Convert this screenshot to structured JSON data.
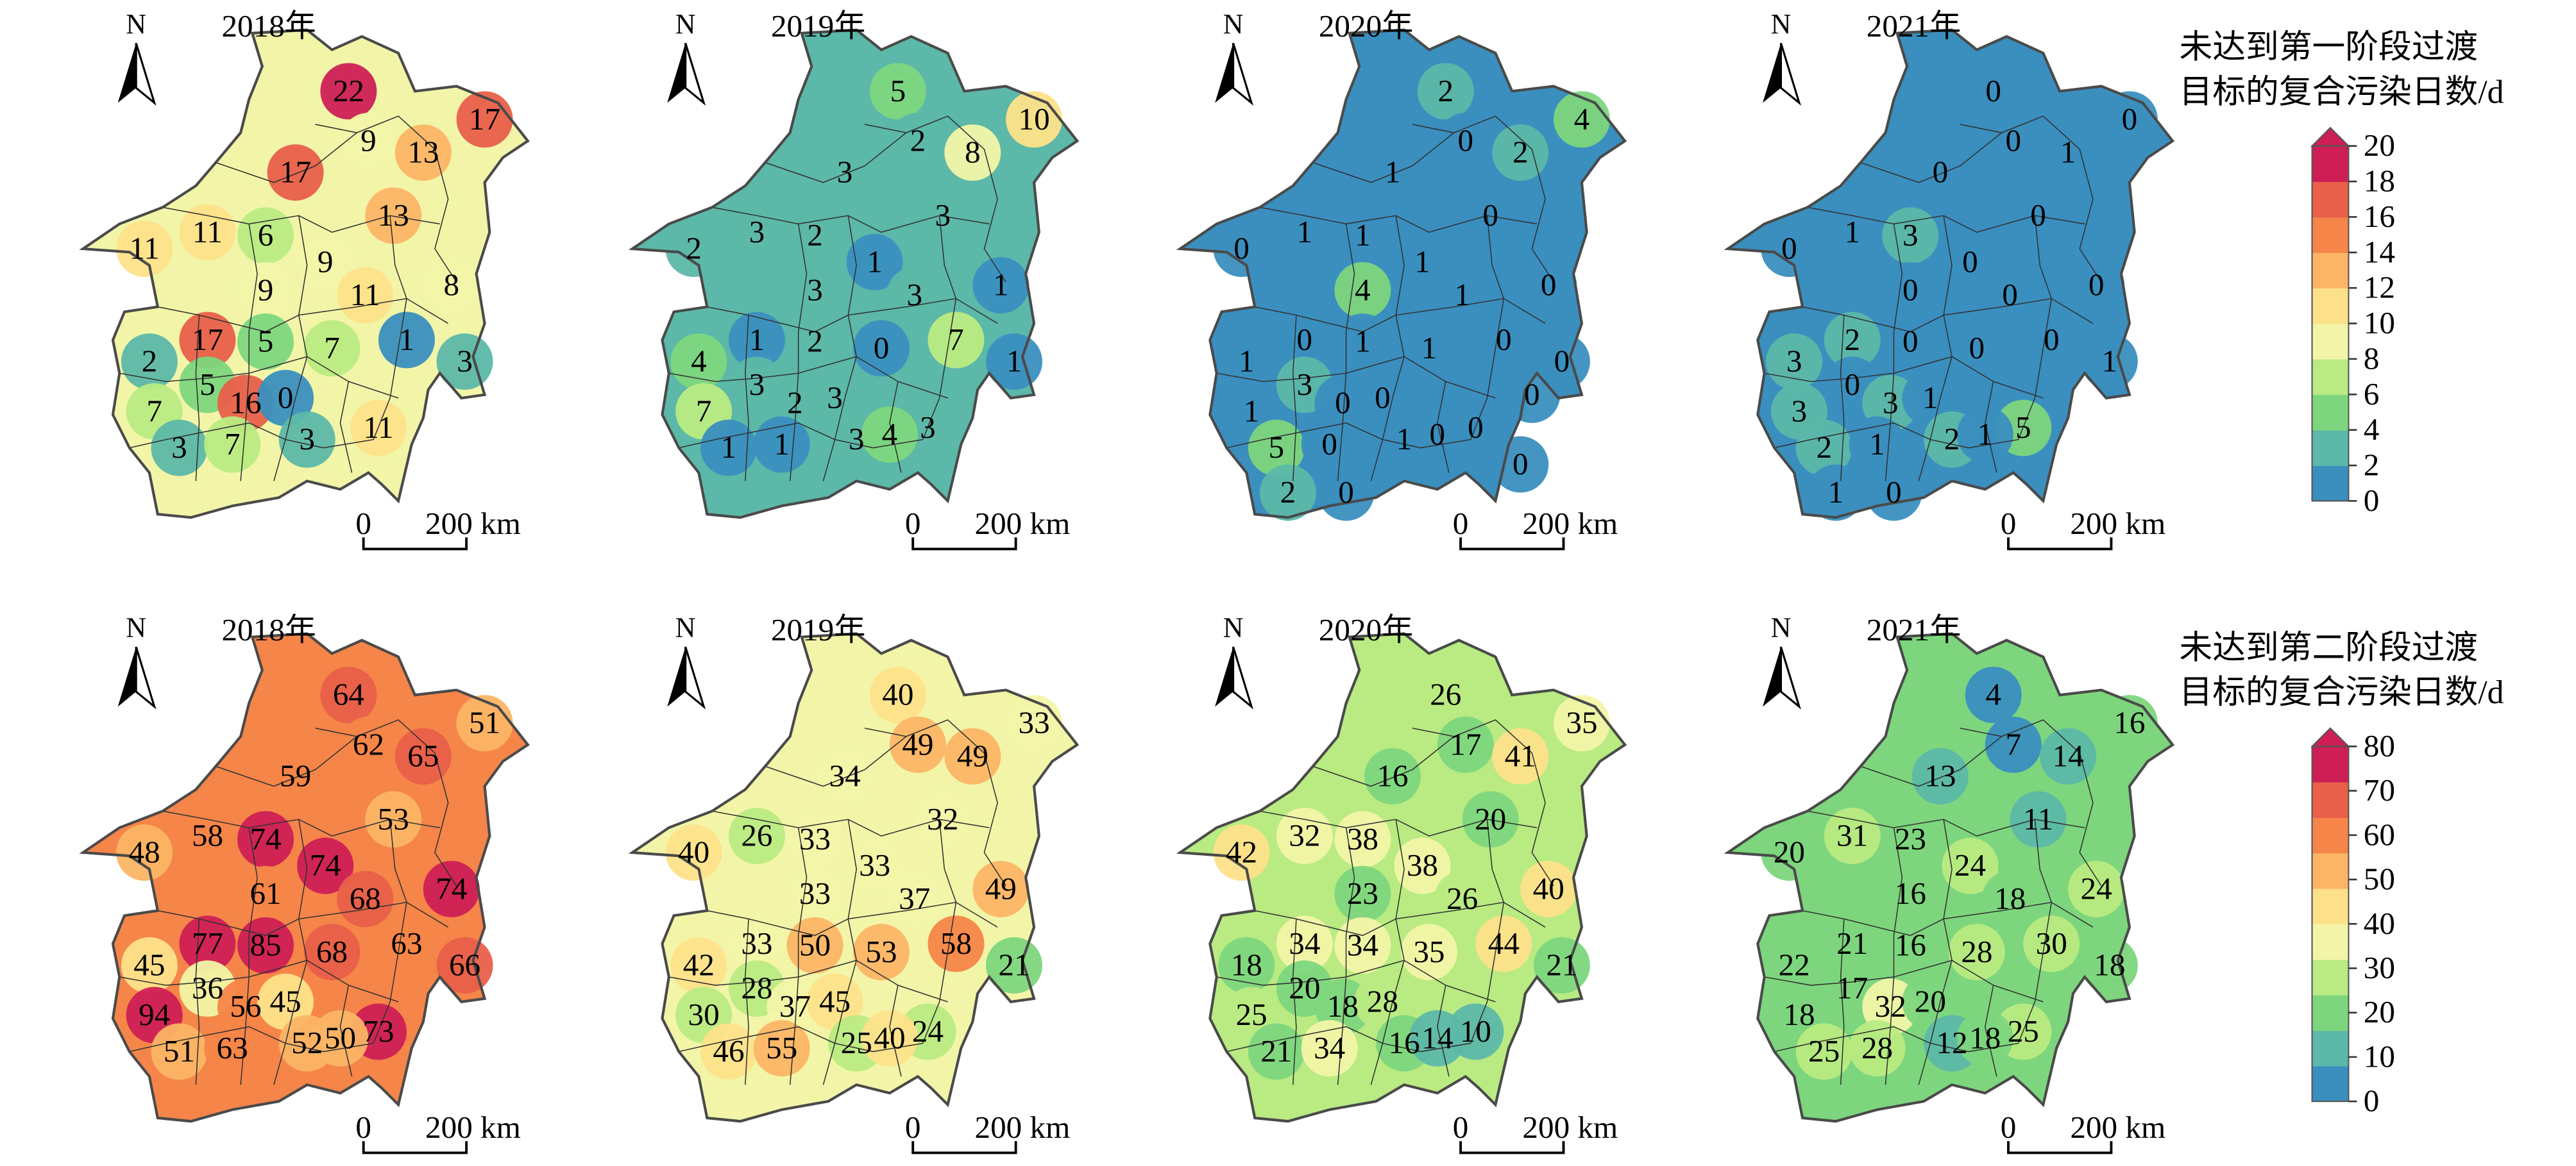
{
  "panels_top": [
    {
      "year": "2018年",
      "values": [
        22,
        17,
        9,
        13,
        17,
        13,
        11,
        6,
        9,
        11,
        9,
        11,
        8,
        17,
        5,
        7,
        1,
        3,
        2,
        5,
        16,
        0,
        7,
        11,
        3,
        7,
        3
      ]
    },
    {
      "year": "2019年",
      "values": [
        5,
        10,
        2,
        8,
        3,
        3,
        3,
        2,
        1,
        2,
        3,
        3,
        1,
        1,
        2,
        0,
        7,
        1,
        4,
        3,
        2,
        3,
        7,
        3,
        1,
        1,
        3,
        4
      ]
    },
    {
      "year": "2020年",
      "values": [
        2,
        4,
        0,
        2,
        1,
        0,
        1,
        1,
        1,
        0,
        4,
        1,
        0,
        0,
        1,
        1,
        0,
        0,
        1,
        3,
        0,
        0,
        1,
        0,
        5,
        0,
        1,
        0,
        2,
        0,
        0,
        0
      ]
    },
    {
      "year": "2021年",
      "values": [
        0,
        0,
        0,
        1,
        0,
        0,
        1,
        3,
        0,
        0,
        0,
        0,
        0,
        2,
        0,
        0,
        0,
        1,
        3,
        0,
        3,
        1,
        3,
        5,
        2,
        1,
        2,
        1,
        1,
        0
      ]
    }
  ],
  "panels_bottom": [
    {
      "year": "2018年",
      "values": [
        64,
        51,
        62,
        65,
        59,
        53,
        58,
        74,
        74,
        48,
        61,
        68,
        74,
        77,
        85,
        68,
        63,
        66,
        45,
        36,
        56,
        45,
        94,
        73,
        51,
        63,
        52,
        50
      ]
    },
    {
      "year": "2019年",
      "values": [
        40,
        33,
        49,
        49,
        34,
        32,
        26,
        33,
        33,
        40,
        33,
        37,
        49,
        33,
        50,
        53,
        58,
        21,
        42,
        28,
        37,
        45,
        30,
        24,
        46,
        55,
        25,
        40
      ]
    },
    {
      "year": "2020年",
      "values": [
        26,
        35,
        17,
        41,
        16,
        20,
        32,
        38,
        38,
        42,
        23,
        26,
        40,
        34,
        34,
        35,
        44,
        21,
        18,
        20,
        18,
        28,
        25,
        10,
        21,
        34,
        16,
        14
      ]
    },
    {
      "year": "2021年",
      "values": [
        4,
        16,
        7,
        14,
        13,
        11,
        31,
        23,
        24,
        20,
        16,
        18,
        24,
        21,
        16,
        28,
        30,
        18,
        22,
        17,
        32,
        20,
        18,
        25,
        25,
        28,
        12,
        18
      ]
    }
  ],
  "north_label": "N",
  "scale_zero": "0",
  "scale_label": "200 km",
  "legend_top": {
    "title_line1": "未达到第一阶段过渡",
    "title_line2": "目标的复合污染日数/d",
    "ticks": [
      "20",
      "18",
      "16",
      "14",
      "12",
      "10",
      "8",
      "6",
      "4",
      "2",
      "0"
    ]
  },
  "legend_bottom": {
    "title_line1": "未达到第二阶段过渡",
    "title_line2": "目标的复合污染日数/d",
    "ticks": [
      "80",
      "70",
      "60",
      "50",
      "40",
      "30",
      "20",
      "10",
      "0"
    ]
  },
  "colors": [
    "#3a8fbf",
    "#5cb8a8",
    "#7dd67d",
    "#b9eb82",
    "#f2f5a8",
    "#fde18a",
    "#fbb565",
    "#f58549",
    "#e85f4a",
    "#cd1f55"
  ]
}
